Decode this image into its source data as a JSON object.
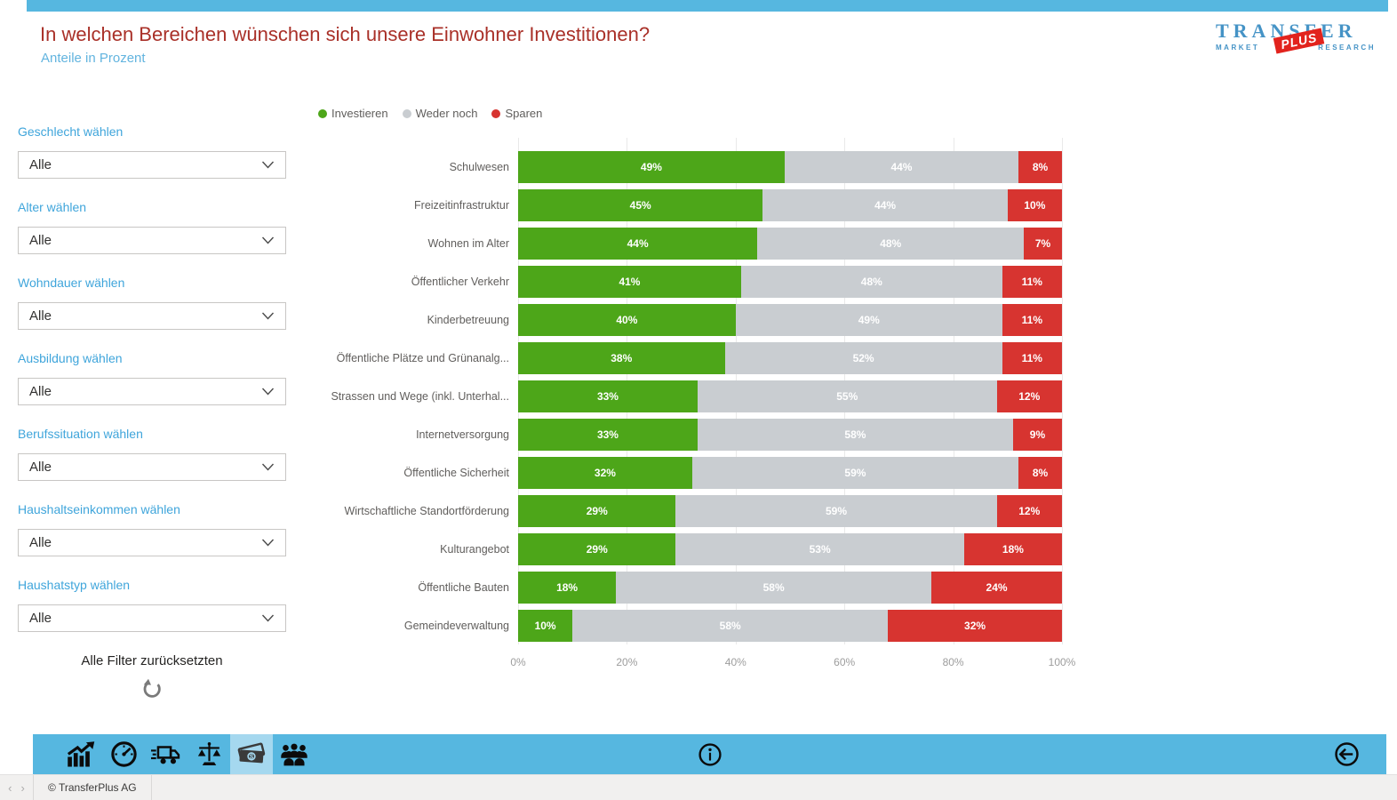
{
  "header": {
    "title": "In welchen Bereichen wünschen sich unsere Einwohner Investitionen?",
    "subtitle": "Anteile in Prozent"
  },
  "logo": {
    "top": "TRANSFER",
    "left": "MARKET",
    "badge": "PLUS",
    "right": "RESEARCH"
  },
  "filters": {
    "groups": [
      {
        "label": "Geschlecht wählen",
        "value": "Alle"
      },
      {
        "label": "Alter wählen",
        "value": "Alle"
      },
      {
        "label": "Wohndauer wählen",
        "value": "Alle"
      },
      {
        "label": "Ausbildung wählen",
        "value": "Alle"
      },
      {
        "label": "Berufssituation wählen",
        "value": "Alle"
      },
      {
        "label": "Haushaltseinkommen wählen",
        "value": "Alle"
      },
      {
        "label": "Haushatstyp wählen",
        "value": "Alle"
      }
    ],
    "reset_label": "Alle Filter zurücksetzten"
  },
  "chart_data": {
    "type": "bar",
    "orientation": "horizontal",
    "stacked": true,
    "legend": [
      {
        "name": "Investieren",
        "color": "#4DA619"
      },
      {
        "name": "Weder noch",
        "color": "#C9CDD1"
      },
      {
        "name": "Sparen",
        "color": "#D73430"
      }
    ],
    "categories": [
      "Schulwesen",
      "Freizeitinfrastruktur",
      "Wohnen im Alter",
      "Öffentlicher Verkehr",
      "Kinderbetreuung",
      "Öffentliche Plätze und Grünanalg...",
      "Strassen und Wege (inkl. Unterhal...",
      "Internetversorgung",
      "Öffentliche Sicherheit",
      "Wirtschaftliche Standortförderung",
      "Kulturangebot",
      "Öffentliche Bauten",
      "Gemeindeverwaltung"
    ],
    "series": [
      {
        "name": "Investieren",
        "values": [
          49,
          45,
          44,
          41,
          40,
          38,
          33,
          33,
          32,
          29,
          29,
          18,
          10
        ]
      },
      {
        "name": "Weder noch",
        "values": [
          44,
          44,
          48,
          48,
          49,
          52,
          55,
          58,
          59,
          59,
          53,
          58,
          58
        ]
      },
      {
        "name": "Sparen",
        "values": [
          8,
          10,
          7,
          11,
          11,
          11,
          12,
          9,
          8,
          12,
          18,
          24,
          32
        ]
      }
    ],
    "x_ticks": [
      "0%",
      "20%",
      "40%",
      "60%",
      "80%",
      "100%"
    ],
    "xlim": [
      0,
      100
    ],
    "value_suffix": "%",
    "grid": true,
    "legend_position": "top"
  },
  "toolbar": {
    "icons": [
      {
        "name": "growth-chart",
        "selected": false
      },
      {
        "name": "gauge",
        "selected": false
      },
      {
        "name": "truck",
        "selected": false
      },
      {
        "name": "scales",
        "selected": false
      },
      {
        "name": "money",
        "selected": true
      },
      {
        "name": "people",
        "selected": false
      }
    ],
    "center_icon": "info",
    "right_icon": "back-arrow"
  },
  "statusbar": {
    "prev_icon": "chevron-left-icon",
    "next_icon": "chevron-right-icon",
    "tab": "© TransferPlus AG"
  },
  "colors": {
    "accent_blue": "#56B7E0",
    "selected_tile_blue": "#A5D8EF",
    "title_red": "#A93028",
    "filter_label_blue": "#3FA5DB",
    "logo_blue": "#4593C6",
    "logo_badge_red": "#E2231D"
  }
}
